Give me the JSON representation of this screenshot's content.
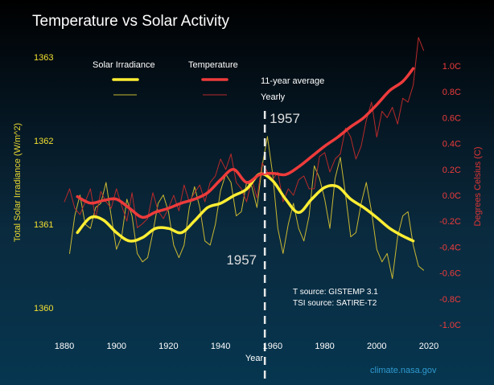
{
  "chart_data": {
    "type": "line",
    "title": "Temperature vs Solar Activity",
    "xlabel": "Year",
    "ylabel_left": "Total Solar Irradiance (W/m^2)",
    "ylabel_right": "Degrees Celsius (C)",
    "xlim": [
      1880,
      2020
    ],
    "ylim_left": [
      1360,
      1363
    ],
    "ylim_right": [
      -1.0,
      1.0
    ],
    "x_ticks": [
      "1880",
      "1900",
      "1920",
      "1940",
      "1960",
      "1980",
      "2000",
      "2020"
    ],
    "x_tick_values": [
      1880,
      1900,
      1920,
      1940,
      1960,
      1980,
      2000,
      2020
    ],
    "y_left_ticks": [
      "1360",
      "1361",
      "1362",
      "1363"
    ],
    "y_left_tick_values": [
      1360,
      1361,
      1362,
      1363
    ],
    "y_right_ticks": [
      "-1.0C",
      "-0.8C",
      "-0.6C",
      "-0.4C",
      "-0.2C",
      "0.0C",
      "0.2C",
      "0.4C",
      "0.6C",
      "0.8C",
      "1.0C"
    ],
    "y_right_tick_values": [
      -1.0,
      -0.8,
      -0.6,
      -0.4,
      -0.2,
      0.0,
      0.2,
      0.4,
      0.6,
      0.8,
      1.0
    ],
    "grid": false,
    "legend": {
      "placement": "top-center",
      "column_headers": [
        "Solar Irradiance",
        "Temperature"
      ],
      "row_labels": [
        "11-year average",
        "Yearly"
      ]
    },
    "annotations": {
      "marker_year": 1957,
      "marker_label_top": "1957",
      "marker_label_left": "1957",
      "source_lines": [
        "T source: GISTEMP 3.1",
        "TSI source: SATIRE-T2"
      ],
      "credit": "climate.nasa.gov"
    },
    "series": [
      {
        "name": "Solar Irradiance 11-year average",
        "axis": "left",
        "color": "#ffee33",
        "x": [
          1885,
          1890,
          1895,
          1900,
          1905,
          1910,
          1915,
          1920,
          1925,
          1930,
          1935,
          1940,
          1945,
          1950,
          1955,
          1960,
          1965,
          1970,
          1975,
          1980,
          1985,
          1990,
          1995,
          2000,
          2005,
          2010,
          2014
        ],
        "values": [
          1360.9,
          1361.08,
          1361.05,
          1360.9,
          1360.8,
          1360.84,
          1360.95,
          1360.95,
          1360.9,
          1361.04,
          1361.2,
          1361.25,
          1361.34,
          1361.42,
          1361.6,
          1361.52,
          1361.3,
          1361.14,
          1361.3,
          1361.44,
          1361.45,
          1361.3,
          1361.2,
          1361.08,
          1360.95,
          1360.86,
          1360.8
        ]
      },
      {
        "name": "Solar Irradiance Yearly",
        "axis": "left",
        "color": "#c9b832",
        "x": [
          1882,
          1884,
          1886,
          1888,
          1890,
          1892,
          1894,
          1896,
          1898,
          1900,
          1902,
          1904,
          1906,
          1908,
          1910,
          1912,
          1914,
          1916,
          1918,
          1920,
          1922,
          1924,
          1926,
          1928,
          1930,
          1932,
          1934,
          1936,
          1938,
          1940,
          1942,
          1944,
          1946,
          1948,
          1950,
          1952,
          1954,
          1956,
          1958,
          1960,
          1962,
          1964,
          1966,
          1968,
          1970,
          1972,
          1974,
          1976,
          1978,
          1980,
          1982,
          1984,
          1986,
          1988,
          1990,
          1992,
          1994,
          1996,
          1998,
          2000,
          2002,
          2004,
          2006,
          2008,
          2010,
          2012,
          2014,
          2016,
          2018
        ],
        "values": [
          1360.65,
          1361.1,
          1361.35,
          1361.0,
          1360.95,
          1361.2,
          1361.25,
          1361.5,
          1361.1,
          1360.7,
          1360.85,
          1361.3,
          1361.1,
          1360.65,
          1360.55,
          1360.6,
          1360.9,
          1361.25,
          1361.35,
          1361.15,
          1360.75,
          1360.6,
          1360.75,
          1361.2,
          1361.45,
          1361.2,
          1360.8,
          1360.75,
          1361.0,
          1361.4,
          1361.6,
          1361.5,
          1361.1,
          1361.15,
          1361.5,
          1361.45,
          1361.2,
          1361.7,
          1362.05,
          1361.6,
          1360.95,
          1360.65,
          1361.0,
          1361.25,
          1360.95,
          1360.8,
          1361.1,
          1361.7,
          1361.55,
          1361.3,
          1360.95,
          1361.55,
          1361.8,
          1361.35,
          1360.85,
          1360.9,
          1361.25,
          1361.5,
          1361.15,
          1360.7,
          1360.55,
          1360.65,
          1360.35,
          1360.85,
          1361.1,
          1361.15,
          1360.75,
          1360.5,
          1360.45
        ]
      },
      {
        "name": "Temperature 11-year average",
        "axis": "right",
        "color": "#ee3b3b",
        "x": [
          1885,
          1890,
          1895,
          1900,
          1905,
          1910,
          1915,
          1920,
          1925,
          1930,
          1935,
          1940,
          1945,
          1950,
          1955,
          1960,
          1965,
          1970,
          1975,
          1980,
          1985,
          1990,
          1995,
          2000,
          2005,
          2010,
          2014
        ],
        "values": [
          -0.01,
          -0.06,
          -0.04,
          -0.03,
          -0.1,
          -0.17,
          -0.13,
          -0.1,
          -0.06,
          -0.03,
          0.02,
          0.12,
          0.2,
          0.1,
          0.16,
          0.17,
          0.16,
          0.22,
          0.3,
          0.38,
          0.45,
          0.53,
          0.6,
          0.7,
          0.81,
          0.88,
          0.98
        ]
      },
      {
        "name": "Temperature Yearly",
        "axis": "right",
        "color": "#b82a2a",
        "x": [
          1880,
          1882,
          1884,
          1886,
          1888,
          1890,
          1892,
          1894,
          1896,
          1898,
          1900,
          1902,
          1904,
          1906,
          1908,
          1910,
          1912,
          1914,
          1916,
          1918,
          1920,
          1922,
          1924,
          1926,
          1928,
          1930,
          1932,
          1934,
          1936,
          1938,
          1940,
          1942,
          1944,
          1946,
          1948,
          1950,
          1952,
          1954,
          1956,
          1958,
          1960,
          1962,
          1964,
          1966,
          1968,
          1970,
          1972,
          1974,
          1976,
          1978,
          1980,
          1982,
          1984,
          1986,
          1988,
          1990,
          1992,
          1994,
          1996,
          1998,
          2000,
          2002,
          2004,
          2006,
          2008,
          2010,
          2012,
          2014,
          2016,
          2018
        ],
        "values": [
          -0.05,
          0.05,
          -0.1,
          -0.15,
          -0.05,
          0.05,
          -0.18,
          0.03,
          -0.05,
          -0.1,
          0.05,
          -0.08,
          -0.2,
          0.02,
          -0.25,
          -0.22,
          -0.18,
          0.02,
          -0.12,
          -0.18,
          -0.1,
          0.0,
          -0.12,
          0.08,
          -0.05,
          0.02,
          0.08,
          -0.05,
          0.1,
          0.15,
          0.28,
          0.2,
          0.32,
          0.1,
          0.05,
          -0.05,
          0.12,
          -0.02,
          0.25,
          0.18,
          0.12,
          0.18,
          -0.05,
          0.05,
          0.0,
          0.12,
          0.15,
          0.05,
          0.05,
          0.3,
          0.33,
          0.18,
          0.28,
          0.32,
          0.52,
          0.45,
          0.28,
          0.38,
          0.58,
          0.72,
          0.45,
          0.65,
          0.6,
          0.68,
          0.55,
          0.75,
          0.72,
          0.85,
          1.22,
          1.12
        ]
      }
    ]
  }
}
